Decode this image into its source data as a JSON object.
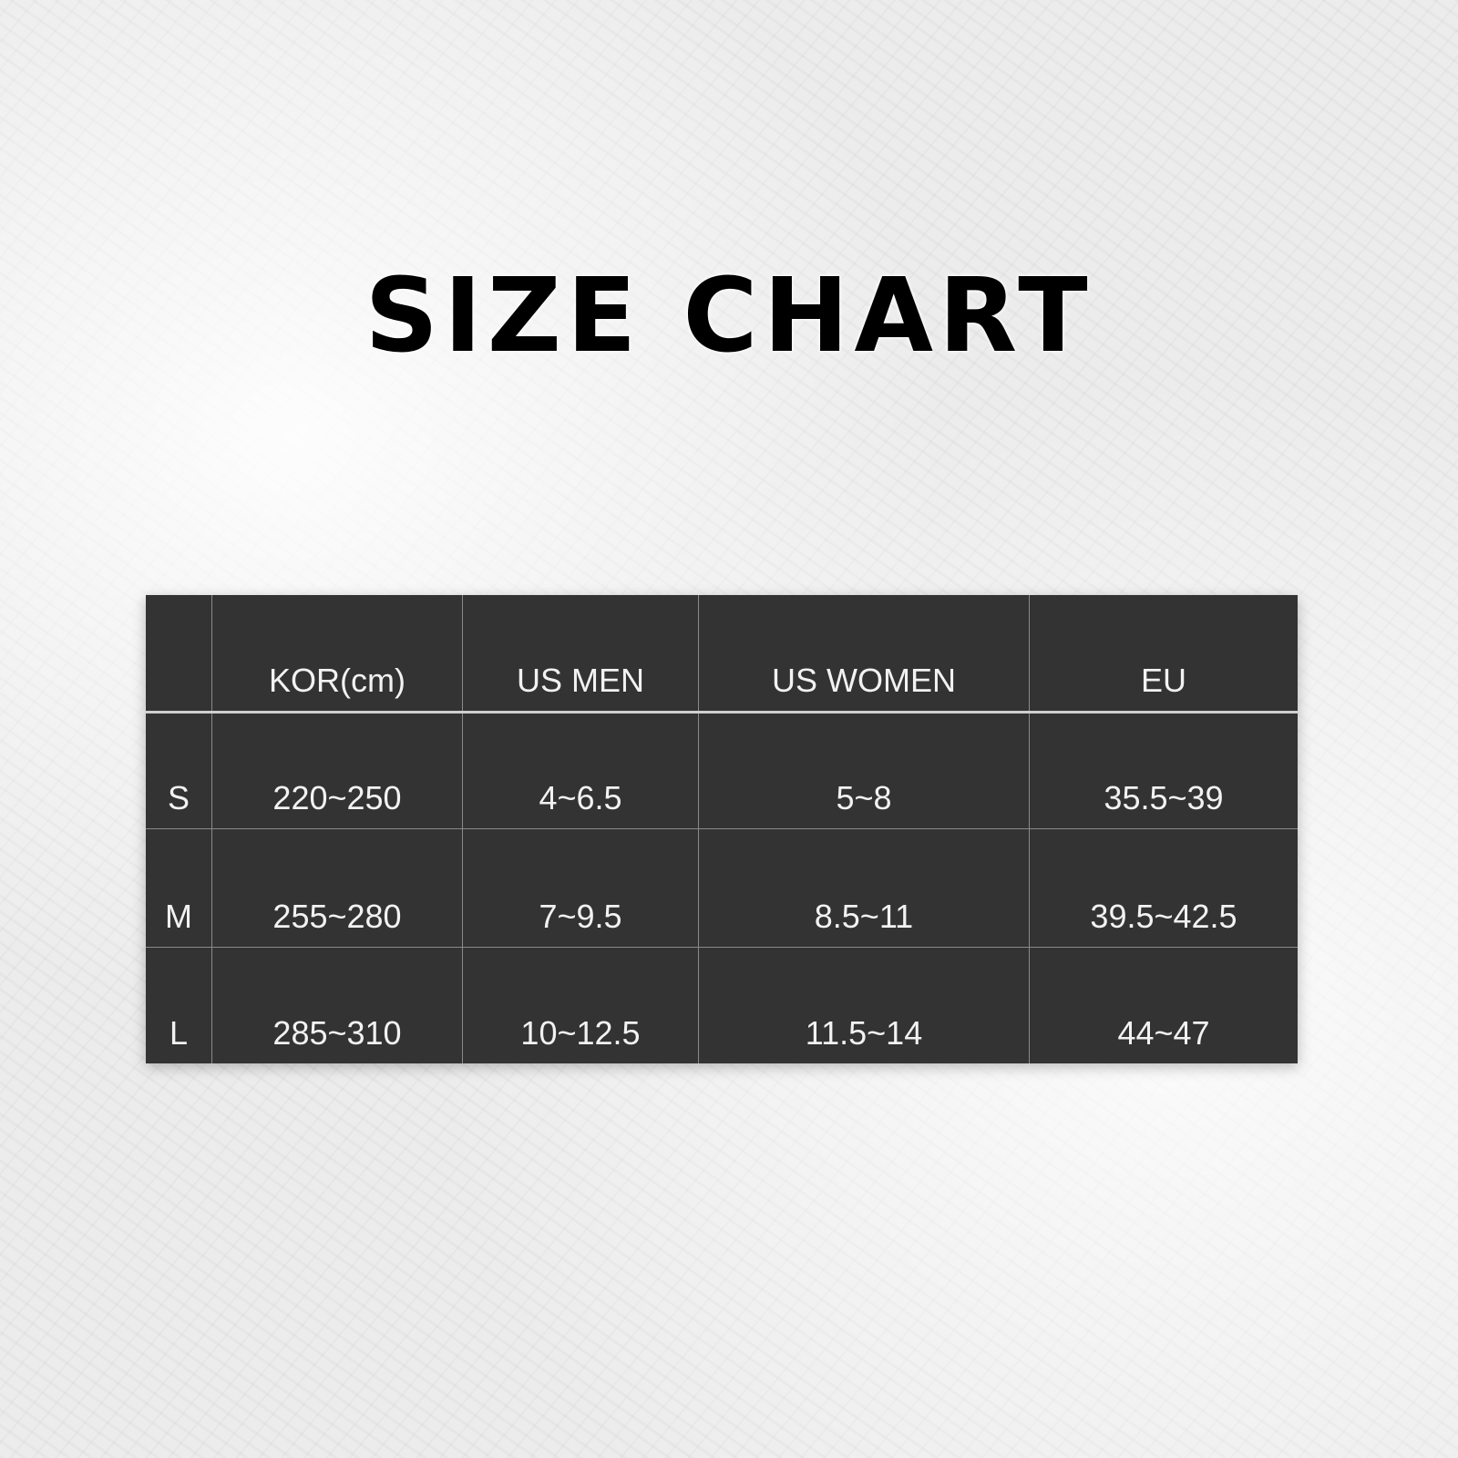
{
  "title": "SIZE CHART",
  "table": {
    "headers": [
      "",
      "KOR(cm)",
      "US MEN",
      "US WOMEN",
      "EU"
    ],
    "rows": [
      [
        "S",
        "220~250",
        "4~6.5",
        "5~8",
        "35.5~39"
      ],
      [
        "M",
        "255~280",
        "7~9.5",
        "8.5~11",
        "39.5~42.5"
      ],
      [
        "L",
        "285~310",
        "10~12.5",
        "11.5~14",
        "44~47"
      ]
    ]
  },
  "colors": {
    "table_bg": "#333333",
    "text": "#f2f2f2",
    "title": "#000000"
  }
}
